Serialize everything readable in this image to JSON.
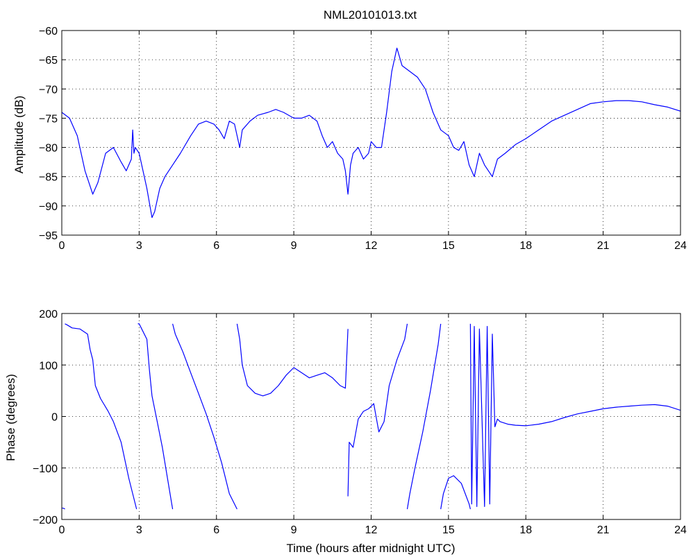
{
  "title": "NML20101013.txt",
  "colors": {
    "trace": "#0000ff",
    "axes": "#000000",
    "grid": "#000000",
    "background": "#ffffff"
  },
  "chart_data": [
    {
      "type": "line",
      "name": "amplitude",
      "ylabel": "Amplitude (dB)",
      "xlabel": "",
      "xlim": [
        0,
        24
      ],
      "ylim": [
        -95,
        -60
      ],
      "xticks": [
        0,
        3,
        6,
        9,
        12,
        15,
        18,
        21,
        24
      ],
      "xtick_labels": [
        "0",
        "3",
        "6",
        "9",
        "12",
        "15",
        "18",
        "21",
        "24"
      ],
      "yticks": [
        -95,
        -90,
        -85,
        -80,
        -75,
        -70,
        -65,
        -60
      ],
      "ytick_labels": [
        "−95",
        "−90",
        "−85",
        "−80",
        "−75",
        "−70",
        "−65",
        "−60"
      ],
      "grid": true,
      "x": [
        0,
        0.3,
        0.6,
        0.9,
        1.2,
        1.4,
        1.7,
        2.0,
        2.3,
        2.5,
        2.7,
        2.75,
        2.8,
        2.85,
        3.0,
        3.3,
        3.5,
        3.6,
        3.8,
        4.0,
        4.3,
        4.6,
        5.0,
        5.3,
        5.6,
        5.9,
        6.1,
        6.3,
        6.5,
        6.7,
        6.9,
        7.0,
        7.3,
        7.6,
        8.0,
        8.3,
        8.6,
        9.0,
        9.3,
        9.6,
        9.9,
        10.1,
        10.3,
        10.5,
        10.7,
        10.9,
        11.0,
        11.1,
        11.2,
        11.3,
        11.5,
        11.7,
        11.9,
        12.0,
        12.2,
        12.4,
        12.6,
        12.8,
        13.0,
        13.2,
        13.5,
        13.8,
        14.1,
        14.4,
        14.7,
        15.0,
        15.2,
        15.4,
        15.6,
        15.8,
        16.0,
        16.2,
        16.4,
        16.7,
        16.9,
        17.2,
        17.6,
        18.0,
        18.5,
        19.0,
        19.5,
        20.0,
        20.5,
        21.0,
        21.5,
        22.0,
        22.5,
        23.0,
        23.5,
        24.0
      ],
      "y": [
        -74,
        -75,
        -78,
        -84,
        -88,
        -86,
        -81,
        -80,
        -82.5,
        -84,
        -82,
        -77,
        -81,
        -80,
        -81,
        -87,
        -92,
        -91,
        -87,
        -85,
        -83,
        -81,
        -78,
        -76,
        -75.5,
        -76,
        -77,
        -78.5,
        -75.5,
        -76,
        -80,
        -77,
        -75.5,
        -74.5,
        -74,
        -73.5,
        -74,
        -75,
        -75,
        -74.5,
        -75.5,
        -78,
        -80,
        -79,
        -81,
        -82,
        -84,
        -88,
        -83,
        -81,
        -80,
        -82,
        -81,
        -79,
        -80,
        -80,
        -74,
        -67,
        -63,
        -66,
        -67,
        -68,
        -70,
        -74,
        -77,
        -78,
        -80,
        -80.5,
        -79,
        -83,
        -85,
        -81,
        -83,
        -85,
        -82,
        -81,
        -79.5,
        -78.5,
        -77,
        -75.5,
        -74.5,
        -73.5,
        -72.5,
        -72.2,
        -72,
        -72,
        -72.2,
        -72.7,
        -73.1,
        -73.8
      ]
    },
    {
      "type": "line",
      "name": "phase",
      "ylabel": "Phase (degrees)",
      "xlabel": "Time (hours after midnight UTC)",
      "xlim": [
        0,
        24
      ],
      "ylim": [
        -200,
        200
      ],
      "xticks": [
        0,
        3,
        6,
        9,
        12,
        15,
        18,
        21,
        24
      ],
      "xtick_labels": [
        "0",
        "3",
        "6",
        "9",
        "12",
        "15",
        "18",
        "21",
        "24"
      ],
      "yticks": [
        -200,
        -100,
        0,
        100,
        200
      ],
      "ytick_labels": [
        "−200",
        "−100",
        "0",
        "100",
        "200"
      ],
      "grid": true,
      "segments": [
        {
          "x": [
            0,
            0.05,
            0.1,
            0.12
          ],
          "y": [
            -178,
            -178,
            -179,
            -180
          ]
        },
        {
          "x": [
            0.12,
            0.2,
            0.4,
            0.7,
            1.0,
            1.1,
            1.2,
            1.3,
            1.5,
            1.8,
            2.0,
            2.3,
            2.6,
            2.9
          ],
          "y": [
            180,
            178,
            172,
            170,
            160,
            130,
            110,
            60,
            35,
            10,
            -10,
            -50,
            -120,
            -180
          ]
        },
        {
          "x": [
            2.95,
            3.0,
            3.1,
            3.3,
            3.4,
            3.5,
            3.7,
            3.9,
            4.1,
            4.3
          ],
          "y": [
            180,
            180,
            170,
            150,
            90,
            40,
            -10,
            -60,
            -120,
            -180
          ]
        },
        {
          "x": [
            4.3,
            4.4,
            4.7,
            5.0,
            5.3,
            5.6,
            5.9,
            6.2,
            6.5,
            6.8
          ],
          "y": [
            180,
            160,
            125,
            85,
            45,
            5,
            -40,
            -90,
            -150,
            -180
          ]
        },
        {
          "x": [
            6.8,
            6.9,
            7.0,
            7.2,
            7.5,
            7.8,
            8.1,
            8.4,
            8.7,
            9.0,
            9.3,
            9.6,
            9.9,
            10.2,
            10.5,
            10.8,
            11.0,
            11.1
          ],
          "y": [
            180,
            150,
            100,
            60,
            45,
            40,
            45,
            60,
            80,
            95,
            85,
            75,
            80,
            85,
            75,
            60,
            55,
            170
          ]
        },
        {
          "x": [
            11.1,
            11.15,
            11.3,
            11.5,
            11.7,
            11.9,
            12.1,
            12.3,
            12.5,
            12.7,
            13.0,
            13.3,
            13.4
          ],
          "y": [
            -155,
            -50,
            -60,
            -5,
            10,
            15,
            25,
            -30,
            -10,
            60,
            110,
            150,
            180
          ]
        },
        {
          "x": [
            13.4,
            13.5,
            13.7,
            14.0,
            14.3,
            14.6,
            14.7
          ],
          "y": [
            -180,
            -150,
            -100,
            -30,
            50,
            140,
            180
          ]
        },
        {
          "x": [
            14.7,
            14.8,
            15.0,
            15.2,
            15.5,
            15.8,
            15.85
          ],
          "y": [
            -180,
            -150,
            -120,
            -115,
            -130,
            -170,
            -180
          ]
        },
        {
          "x": [
            15.85,
            15.9,
            16.0,
            16.1,
            16.2,
            16.4,
            16.5,
            16.6,
            16.7,
            16.8,
            16.9,
            17.0,
            17.3,
            17.6,
            18.0,
            18.5,
            19.0,
            19.5,
            20.0,
            20.5,
            21.0,
            21.5,
            22.0,
            22.5,
            23.0,
            23.5,
            24.0
          ],
          "y": [
            180,
            -170,
            175,
            -175,
            170,
            -175,
            175,
            -170,
            160,
            -20,
            -5,
            -10,
            -15,
            -17,
            -18,
            -15,
            -10,
            -2,
            5,
            10,
            15,
            18,
            20,
            22,
            23,
            20,
            12
          ]
        }
      ]
    }
  ]
}
